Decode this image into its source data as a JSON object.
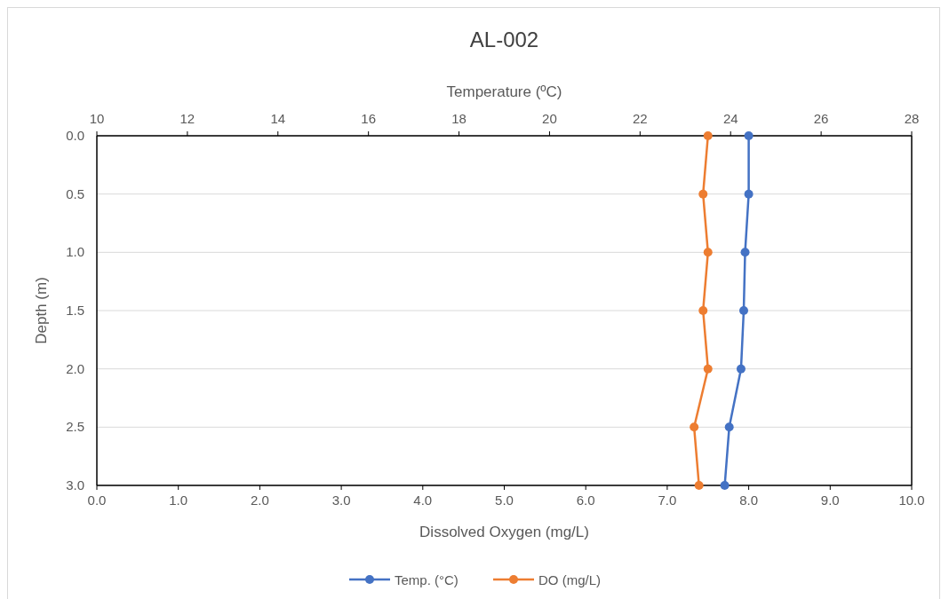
{
  "chart_data": {
    "type": "line",
    "title": "AL-002",
    "xlabel": "Dissolved Oxygen (mg/L)",
    "x2label": "Temperature (ºC)",
    "ylabel": "Depth (m)",
    "xlim": [
      0,
      10
    ],
    "xticks": [
      {
        "value": 0,
        "label": "0.0"
      },
      {
        "value": 1,
        "label": "1.0"
      },
      {
        "value": 2,
        "label": "2.0"
      },
      {
        "value": 3,
        "label": "3.0"
      },
      {
        "value": 4,
        "label": "4.0"
      },
      {
        "value": 5,
        "label": "5.0"
      },
      {
        "value": 6,
        "label": "6.0"
      },
      {
        "value": 7,
        "label": "7.0"
      },
      {
        "value": 8,
        "label": "8.0"
      },
      {
        "value": 9,
        "label": "9.0"
      },
      {
        "value": 10,
        "label": "10.0"
      }
    ],
    "x2lim": [
      10,
      28
    ],
    "x2ticks": [
      10,
      12,
      14,
      16,
      18,
      20,
      22,
      24,
      26,
      28
    ],
    "ylim": [
      3,
      0
    ],
    "yticks": [
      {
        "value": 0,
        "label": "0.0"
      },
      {
        "value": 0.5,
        "label": "0.5"
      },
      {
        "value": 1,
        "label": "1.0"
      },
      {
        "value": 1.5,
        "label": "1.5"
      },
      {
        "value": 2,
        "label": "2.0"
      },
      {
        "value": 2.5,
        "label": "2.5"
      },
      {
        "value": 3,
        "label": "3.0"
      }
    ],
    "grid": "y",
    "legend": "bottom",
    "marker": "circle",
    "line_style": "solid",
    "series": [
      {
        "name": "Temp. (°C)",
        "color": "#4472c4",
        "axis": "x2",
        "x": [
          24.4,
          24.4,
          24.32,
          24.29,
          24.23,
          23.97,
          23.87
        ],
        "values": [
          0,
          0.5,
          1,
          1.5,
          2,
          2.5,
          3
        ]
      },
      {
        "name": "DO (mg/L)",
        "color": "#ed7d31",
        "x": [
          7.5,
          7.44,
          7.5,
          7.44,
          7.5,
          7.33,
          7.39
        ],
        "values": [
          0,
          0.5,
          1,
          1.5,
          2,
          2.5,
          3
        ]
      }
    ]
  }
}
